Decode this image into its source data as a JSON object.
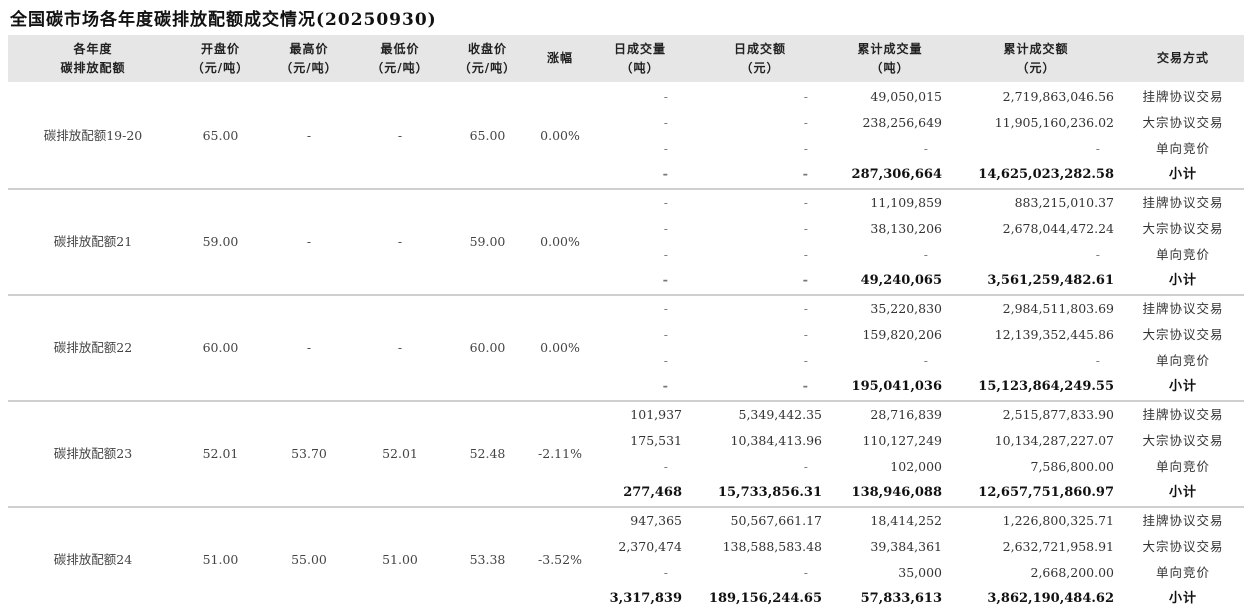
{
  "title": "全国碳市场各年度碳排放配额成交情况(20250930)",
  "headers": [
    [
      "各年度",
      "碳排放配额"
    ],
    [
      "开盘价",
      "（元/吨）"
    ],
    [
      "最高价",
      "（元/吨）"
    ],
    [
      "最低价",
      "（元/吨）"
    ],
    [
      "收盘价",
      "（元/吨）"
    ],
    [
      "涨幅"
    ],
    [
      "日成交量",
      "（吨）"
    ],
    [
      "日成交额",
      "（元）"
    ],
    [
      "累计成交量",
      "（吨）"
    ],
    [
      "累计成交额",
      "（元）"
    ],
    [
      "交易方式"
    ]
  ],
  "groups": [
    {
      "name": "碳排放配额19-20",
      "open": "65.00",
      "high": "-",
      "low": "-",
      "close": "65.00",
      "change": "0.00%",
      "rows": [
        {
          "daily_volume": "-",
          "daily_amount": "-",
          "cum_volume": "49,050,015",
          "cum_amount": "2,719,863,046.56",
          "method": "挂牌协议交易"
        },
        {
          "daily_volume": "-",
          "daily_amount": "-",
          "cum_volume": "238,256,649",
          "cum_amount": "11,905,160,236.02",
          "method": "大宗协议交易"
        },
        {
          "daily_volume": "-",
          "daily_amount": "-",
          "cum_volume": "-",
          "cum_amount": "-",
          "method": "单向竞价"
        },
        {
          "daily_volume": "-",
          "daily_amount": "-",
          "cum_volume": "287,306,664",
          "cum_amount": "14,625,023,282.58",
          "method": "小计"
        }
      ]
    },
    {
      "name": "碳排放配额21",
      "open": "59.00",
      "high": "-",
      "low": "-",
      "close": "59.00",
      "change": "0.00%",
      "rows": [
        {
          "daily_volume": "-",
          "daily_amount": "-",
          "cum_volume": "11,109,859",
          "cum_amount": "883,215,010.37",
          "method": "挂牌协议交易"
        },
        {
          "daily_volume": "-",
          "daily_amount": "-",
          "cum_volume": "38,130,206",
          "cum_amount": "2,678,044,472.24",
          "method": "大宗协议交易"
        },
        {
          "daily_volume": "-",
          "daily_amount": "-",
          "cum_volume": "-",
          "cum_amount": "-",
          "method": "单向竞价"
        },
        {
          "daily_volume": "-",
          "daily_amount": "-",
          "cum_volume": "49,240,065",
          "cum_amount": "3,561,259,482.61",
          "method": "小计"
        }
      ]
    },
    {
      "name": "碳排放配额22",
      "open": "60.00",
      "high": "-",
      "low": "-",
      "close": "60.00",
      "change": "0.00%",
      "rows": [
        {
          "daily_volume": "-",
          "daily_amount": "-",
          "cum_volume": "35,220,830",
          "cum_amount": "2,984,511,803.69",
          "method": "挂牌协议交易"
        },
        {
          "daily_volume": "-",
          "daily_amount": "-",
          "cum_volume": "159,820,206",
          "cum_amount": "12,139,352,445.86",
          "method": "大宗协议交易"
        },
        {
          "daily_volume": "-",
          "daily_amount": "-",
          "cum_volume": "-",
          "cum_amount": "-",
          "method": "单向竞价"
        },
        {
          "daily_volume": "-",
          "daily_amount": "-",
          "cum_volume": "195,041,036",
          "cum_amount": "15,123,864,249.55",
          "method": "小计"
        }
      ]
    },
    {
      "name": "碳排放配额23",
      "open": "52.01",
      "high": "53.70",
      "low": "52.01",
      "close": "52.48",
      "change": "-2.11%",
      "rows": [
        {
          "daily_volume": "101,937",
          "daily_amount": "5,349,442.35",
          "cum_volume": "28,716,839",
          "cum_amount": "2,515,877,833.90",
          "method": "挂牌协议交易"
        },
        {
          "daily_volume": "175,531",
          "daily_amount": "10,384,413.96",
          "cum_volume": "110,127,249",
          "cum_amount": "10,134,287,227.07",
          "method": "大宗协议交易"
        },
        {
          "daily_volume": "-",
          "daily_amount": "-",
          "cum_volume": "102,000",
          "cum_amount": "7,586,800.00",
          "method": "单向竞价"
        },
        {
          "daily_volume": "277,468",
          "daily_amount": "15,733,856.31",
          "cum_volume": "138,946,088",
          "cum_amount": "12,657,751,860.97",
          "method": "小计"
        }
      ]
    },
    {
      "name": "碳排放配额24",
      "open": "51.00",
      "high": "55.00",
      "low": "51.00",
      "close": "53.38",
      "change": "-3.52%",
      "rows": [
        {
          "daily_volume": "947,365",
          "daily_amount": "50,567,661.17",
          "cum_volume": "18,414,252",
          "cum_amount": "1,226,800,325.71",
          "method": "挂牌协议交易"
        },
        {
          "daily_volume": "2,370,474",
          "daily_amount": "138,588,583.48",
          "cum_volume": "39,384,361",
          "cum_amount": "2,632,721,958.91",
          "method": "大宗协议交易"
        },
        {
          "daily_volume": "-",
          "daily_amount": "-",
          "cum_volume": "35,000",
          "cum_amount": "2,668,200.00",
          "method": "单向竞价"
        },
        {
          "daily_volume": "3,317,839",
          "daily_amount": "189,156,244.65",
          "cum_volume": "57,833,613",
          "cum_amount": "3,862,190,484.62",
          "method": "小计"
        }
      ]
    }
  ]
}
